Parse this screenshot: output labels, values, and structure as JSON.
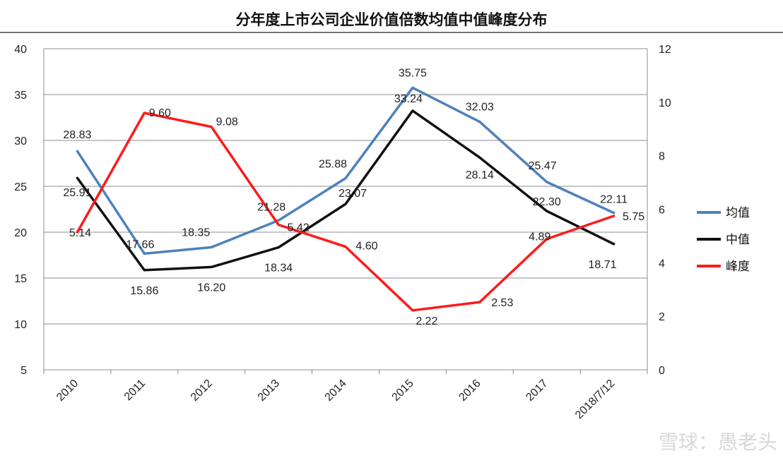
{
  "chart_data": {
    "type": "line",
    "title": "分年度上市公司企业价值倍数均值中值峰度分布",
    "categories": [
      "2010",
      "2011",
      "2012",
      "2013",
      "2014",
      "2015",
      "2016",
      "2017",
      "2018/7/12"
    ],
    "series": [
      {
        "name": "均值",
        "axis": "left",
        "color": "#4f81bd",
        "values": [
          28.83,
          17.66,
          18.35,
          21.28,
          25.88,
          35.75,
          32.03,
          25.47,
          22.11
        ],
        "labels": [
          "28.83",
          "17.66",
          "18.35",
          "21.28",
          "25.88",
          "35.75",
          "32.03",
          "25.47",
          "22.11"
        ]
      },
      {
        "name": "中值",
        "axis": "left",
        "color": "#111111",
        "values": [
          25.91,
          15.86,
          16.2,
          18.34,
          23.07,
          33.24,
          28.14,
          22.3,
          18.71
        ],
        "labels": [
          "25.91",
          "15.86",
          "16.20",
          "18.34",
          "23.07",
          "33.24",
          "28.14",
          "22.30",
          "18.71"
        ]
      },
      {
        "name": "峰度",
        "axis": "right",
        "color": "#ff1a1a",
        "values": [
          5.14,
          9.6,
          9.08,
          5.42,
          4.6,
          2.22,
          2.53,
          4.89,
          5.75
        ],
        "labels": [
          "5.14",
          "9.60",
          "9.08",
          "5.42",
          "4.60",
          "2.22",
          "2.53",
          "4.89",
          "5.75"
        ]
      }
    ],
    "y_left": {
      "min": 5,
      "max": 40,
      "ticks": [
        "40",
        "35",
        "30",
        "25",
        "20",
        "15",
        "10",
        "5"
      ]
    },
    "y_right": {
      "min": 0,
      "max": 12,
      "ticks": [
        "12",
        "10",
        "8",
        "6",
        "4",
        "2",
        "0"
      ]
    },
    "grid": true,
    "legend_position": "right"
  },
  "watermark": "雪球：愚老头"
}
